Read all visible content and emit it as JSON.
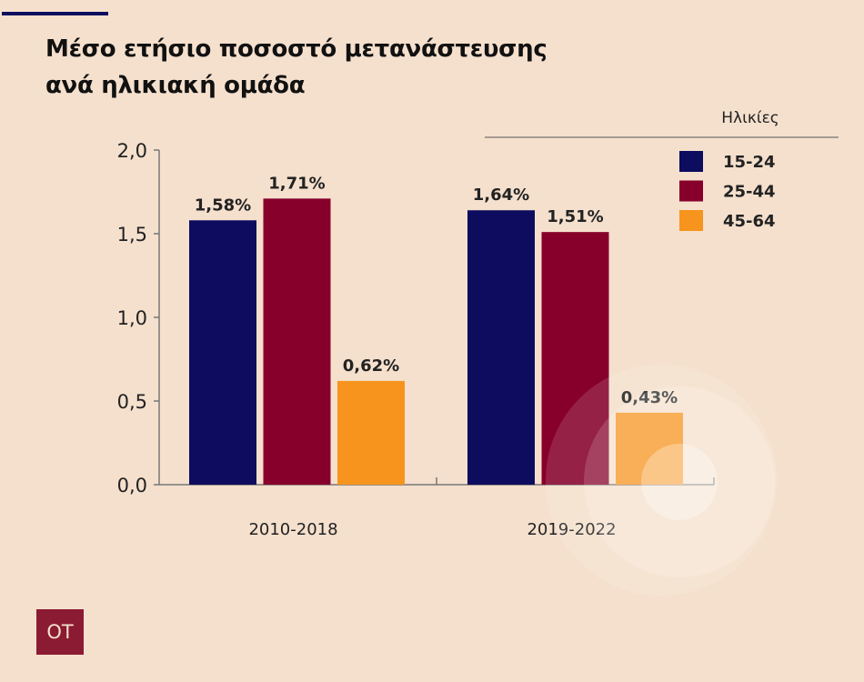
{
  "title_lines": [
    "Μέσο ετήσιο ποσοστό μετανάστευσης",
    "ανά ηλικιακή ομάδα"
  ],
  "logo_text": "OT",
  "chart_data": {
    "type": "bar",
    "title": "Μέσο ετήσιο ποσοστό μετανάστευσης ανά ηλικιακή ομάδα",
    "categories": [
      "2010-2018",
      "2019-2022"
    ],
    "series": [
      {
        "name": "15-24",
        "color": "#0d0c5e",
        "values": [
          1.58,
          1.64
        ],
        "labels": [
          "1,58%",
          "1,64%"
        ]
      },
      {
        "name": "25-44",
        "color": "#87002b",
        "values": [
          1.71,
          1.51
        ],
        "labels": [
          "1,71%",
          "1,51%"
        ]
      },
      {
        "name": "45-64",
        "color": "#f7941d",
        "values": [
          0.62,
          0.43
        ],
        "labels": [
          "0,62%",
          "0,43%"
        ]
      }
    ],
    "ylim": [
      0,
      2
    ],
    "yticks": [
      0,
      0.5,
      1,
      1.5,
      2
    ],
    "ytick_labels": [
      "0,0",
      "0,5",
      "1,0",
      "1,5",
      "2,0"
    ],
    "legend_title": "Ηλικίες",
    "legend_position": "top-right",
    "xlabel": "",
    "ylabel": "",
    "grid": false
  }
}
